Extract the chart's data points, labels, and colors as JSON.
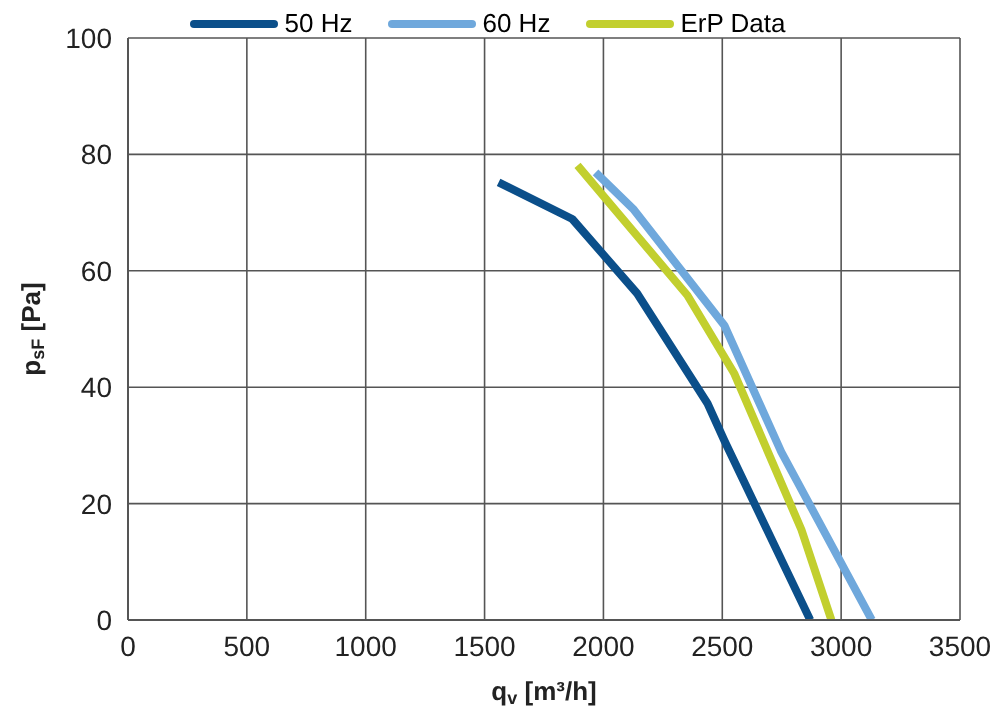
{
  "chart_data": {
    "type": "line",
    "xlabel": "q$_{v}$ [m³/h]",
    "ylabel": "p$_{sF}$ [Pa]",
    "xlim": [
      0,
      3500
    ],
    "xticks": [
      0,
      500,
      1000,
      1500,
      2000,
      2500,
      3000,
      3500
    ],
    "ylim": [
      0,
      100
    ],
    "yticks": [
      0,
      20,
      40,
      60,
      80,
      100
    ],
    "grid": true,
    "legend": "top",
    "marker": "none",
    "line_style": "solid",
    "series": [
      {
        "name": "50 Hz",
        "color": "#0b4f8a",
        "x": [
          1559,
          1869,
          2142,
          2438,
          2509,
          2870
        ],
        "values": [
          75.2,
          68.9,
          56.1,
          37.2,
          30.8,
          0
        ]
      },
      {
        "name": "60 Hz",
        "color": "#6fa8dc",
        "x": [
          1967,
          2128,
          2509,
          2748,
          3129
        ],
        "values": [
          76.9,
          70.5,
          50.6,
          28.9,
          0
        ]
      },
      {
        "name": "ErP Data",
        "color": "#c2cf2e",
        "x": [
          1891,
          2353,
          2551,
          2833,
          2959
        ],
        "values": [
          78.1,
          55.8,
          42.3,
          15.5,
          0
        ]
      }
    ]
  }
}
